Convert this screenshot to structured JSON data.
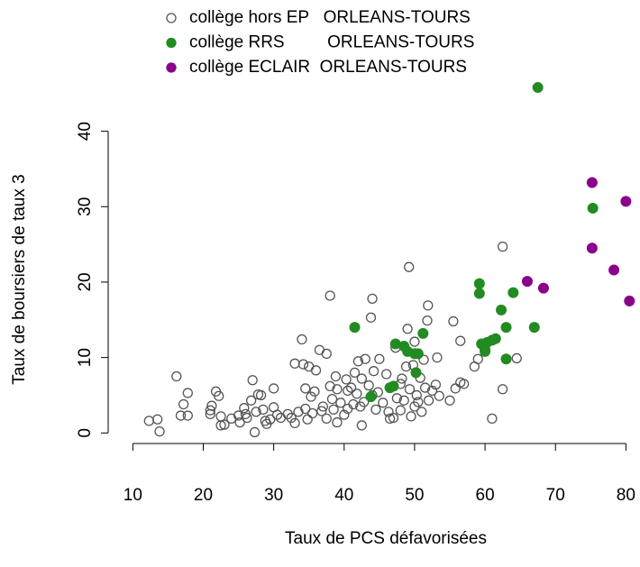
{
  "chart_data": {
    "type": "scatter",
    "xlabel": "Taux de PCS défavorisées",
    "ylabel": "Taux de boursiers de taux 3",
    "xlim": [
      6.5,
      82
    ],
    "ylim": [
      -1.4,
      47.6
    ],
    "xticks": [
      10,
      20,
      30,
      40,
      50,
      60,
      70,
      80
    ],
    "yticks": [
      0,
      10,
      20,
      30,
      40
    ],
    "grid": false,
    "legend": "top",
    "series": [
      {
        "name": "collège hors EP   ORLEANS-TOURS",
        "color": "#555555",
        "marker": "open",
        "x": [
          12.3,
          13.5,
          13.8,
          16.2,
          16.8,
          17.2,
          17.8,
          17.8,
          21,
          21,
          21.2,
          21.8,
          22.2,
          22.5,
          22.5,
          23,
          24,
          25,
          25.2,
          25.8,
          26,
          26.2,
          26.8,
          27,
          27.3,
          27.5,
          27.8,
          28.2,
          28.5,
          28.8,
          29,
          29.5,
          30,
          30,
          30.5,
          31,
          32,
          32.5,
          33,
          33,
          33.5,
          34,
          34.2,
          34.5,
          34.5,
          34.8,
          35,
          35.3,
          35.5,
          35.8,
          36,
          36.5,
          36.8,
          37,
          37.5,
          37.5,
          38,
          38,
          38.3,
          38.5,
          38.8,
          39,
          39.5,
          40,
          40.3,
          40.5,
          41,
          41.3,
          41.5,
          41.8,
          42,
          42.3,
          42.5,
          42.8,
          43,
          43.5,
          43.8,
          44,
          44.2,
          44.5,
          44.8,
          45,
          45.5,
          46,
          46.3,
          46.5,
          47,
          47.3,
          47.5,
          48,
          48.2,
          48.5,
          48.8,
          49,
          49.2,
          49.3,
          49.5,
          49.8,
          50,
          50,
          50.3,
          50.5,
          50.8,
          51,
          51.3,
          51.5,
          51.8,
          51.9,
          52,
          52.5,
          53,
          53.2,
          53.5,
          55,
          55.5,
          55.8,
          56.5,
          56.5,
          57,
          58.5,
          59,
          62.5,
          62.5,
          61,
          64.5,
          42.5,
          39,
          40.5,
          44,
          48
        ],
        "values": [
          1.6,
          1.8,
          0.2,
          7.5,
          2.3,
          3.8,
          5.3,
          2.3,
          3,
          2.5,
          3.6,
          5.5,
          4.9,
          2.2,
          1,
          1.1,
          1.9,
          2.3,
          1.4,
          3.3,
          2.5,
          2,
          4.3,
          7,
          0.1,
          2.8,
          5.1,
          5,
          3.1,
          1.6,
          1.2,
          1.8,
          5.9,
          3.4,
          2.4,
          2,
          2.5,
          2,
          9.2,
          1.3,
          2.8,
          12.4,
          9.1,
          5.9,
          3.2,
          1.8,
          8.8,
          4.8,
          2.6,
          5.5,
          8.3,
          11,
          2.9,
          3.5,
          1.9,
          10.5,
          18.2,
          6.2,
          4.5,
          3.1,
          7.5,
          5.8,
          4,
          2.4,
          7.1,
          3.2,
          6,
          3.8,
          8,
          5.2,
          9.5,
          3.5,
          7.2,
          4.1,
          9.8,
          6.3,
          15.3,
          17.8,
          8.2,
          3.1,
          5.4,
          9.8,
          4,
          7.8,
          2.8,
          1.9,
          2,
          11.3,
          4.6,
          6.5,
          7.2,
          4.3,
          8.8,
          13.8,
          22,
          5.8,
          2.2,
          9,
          3.5,
          12.1,
          5,
          4.1,
          7.3,
          2.8,
          9.7,
          6,
          14.9,
          16.9,
          4.3,
          5.6,
          6.4,
          10,
          4.9,
          4.3,
          14.8,
          5.9,
          6.7,
          12.2,
          6.5,
          8.8,
          9.8,
          24.7,
          5.8,
          1.9,
          9.9,
          1,
          1.4,
          5.6,
          5,
          3
        ]
      },
      {
        "name": "collège RRS         ORLEANS-TOURS",
        "color": "#228b22",
        "marker": "filled",
        "x": [
          67.5,
          75.3,
          59.2,
          59.2,
          64,
          62.3,
          41.5,
          51.2,
          67,
          63,
          47.3,
          48.5,
          49,
          50,
          50.5,
          59.5,
          60,
          60.3,
          61,
          61.5,
          60,
          63,
          50.2,
          47,
          46.5,
          43.8
        ],
        "values": [
          45.8,
          29.8,
          19.8,
          18.5,
          18.6,
          16.3,
          14,
          13.2,
          14,
          14,
          11.8,
          11.5,
          10.8,
          10.5,
          10.5,
          11.8,
          11,
          12,
          12.3,
          12.5,
          10.8,
          9.8,
          8,
          6.2,
          6,
          4.8
        ]
      },
      {
        "name": "collège ECLAIR  ORLEANS-TOURS",
        "color": "#8b008b",
        "marker": "filled",
        "x": [
          75.2,
          80,
          75.2,
          78.3,
          66,
          68.3,
          80.5
        ],
        "values": [
          33.2,
          30.7,
          24.5,
          21.6,
          20.1,
          19.2,
          17.5
        ]
      }
    ]
  }
}
